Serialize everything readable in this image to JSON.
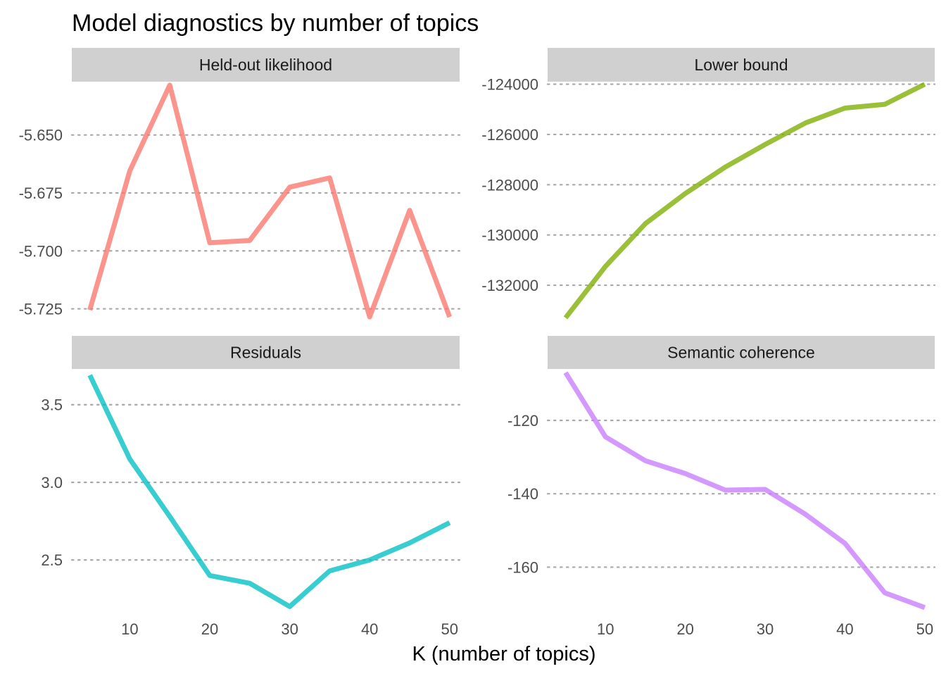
{
  "chart_data": {
    "type": "line",
    "title": "Model diagnostics by number of topics",
    "xlabel": "K (number of topics)",
    "ylabel": "",
    "x": [
      5,
      10,
      15,
      20,
      25,
      30,
      35,
      40,
      45,
      50
    ],
    "x_ticks": [
      10,
      20,
      30,
      40,
      50
    ],
    "grid": "horizontal dotted",
    "legend": "none",
    "panels": [
      {
        "name": "Held-out likelihood",
        "color": "#F8766D",
        "values": [
          -5.7255,
          -5.6655,
          -5.6285,
          -5.6965,
          -5.6955,
          -5.6725,
          -5.6685,
          -5.7285,
          -5.6825,
          -5.7285
        ],
        "ylim": [
          -5.73,
          -5.627
        ],
        "y_ticks": [
          -5.65,
          -5.675,
          -5.7,
          -5.725
        ],
        "y_tick_labels": [
          "-5.650",
          "-5.675",
          "-5.700",
          "-5.725"
        ]
      },
      {
        "name": "Lower bound",
        "color": "#7CAE00",
        "values": [
          -133300,
          -131250,
          -129550,
          -128350,
          -127300,
          -126400,
          -125550,
          -124950,
          -124800,
          -124000
        ],
        "ylim": [
          -133400,
          -123900
        ],
        "y_ticks": [
          -124000,
          -126000,
          -128000,
          -130000,
          -132000
        ],
        "y_tick_labels": [
          "-124000",
          "-126000",
          "-128000",
          "-130000",
          "-132000"
        ]
      },
      {
        "name": "Residuals",
        "color": "#00BFC4",
        "values": [
          3.69,
          3.15,
          2.78,
          2.4,
          2.35,
          2.2,
          2.43,
          2.5,
          2.61,
          2.74
        ],
        "ylim": [
          2.17,
          3.73
        ],
        "y_ticks": [
          2.5,
          3.0,
          3.5
        ],
        "y_tick_labels": [
          "2.5",
          "3.0",
          "3.5"
        ]
      },
      {
        "name": "Semantic coherence",
        "color": "#C77CFF",
        "values": [
          -107,
          -124.5,
          -131,
          -134.5,
          -139,
          -138.8,
          -145.5,
          -153.5,
          -167,
          -171
        ],
        "ylim": [
          -172,
          -106
        ],
        "y_ticks": [
          -120,
          -140,
          -160
        ],
        "y_tick_labels": [
          "-120",
          "-140",
          "-160"
        ]
      }
    ]
  }
}
